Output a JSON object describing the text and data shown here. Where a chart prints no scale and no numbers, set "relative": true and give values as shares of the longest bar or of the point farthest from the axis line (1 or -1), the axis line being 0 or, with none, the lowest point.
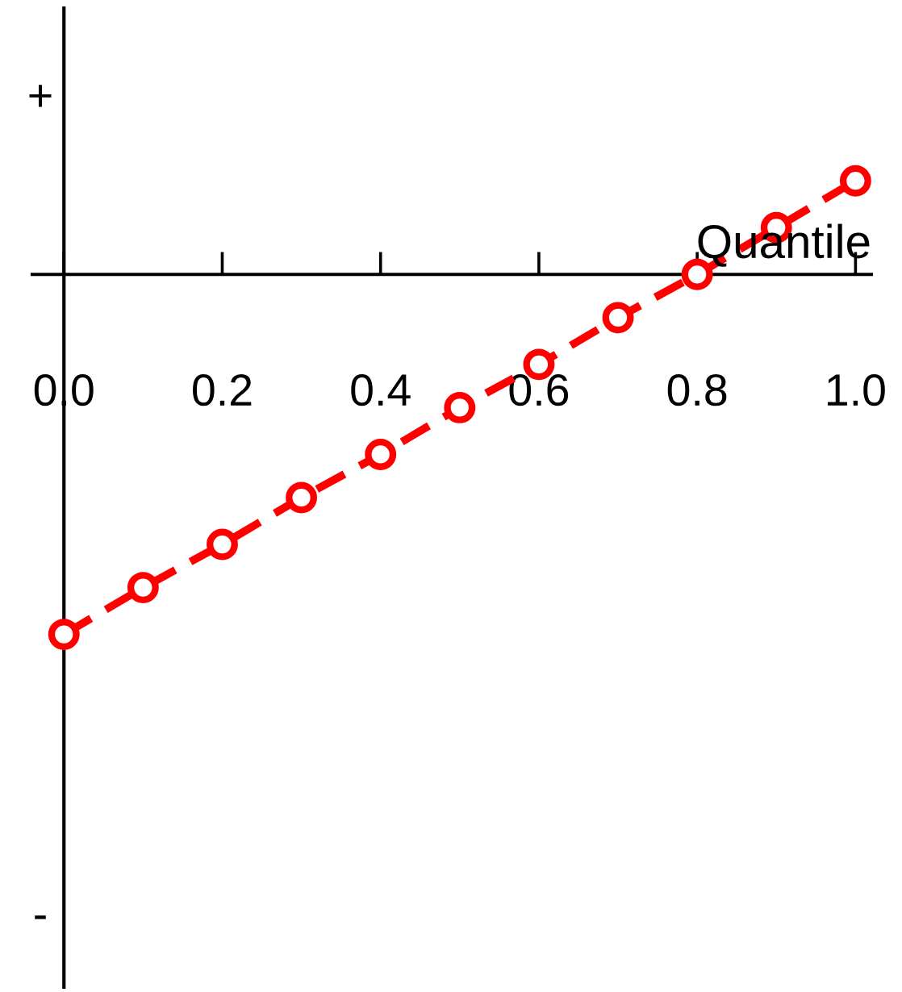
{
  "chart_data": {
    "type": "line",
    "relative": true,
    "xlabel": "Quantile",
    "x": [
      0,
      0.1,
      0.2,
      0.3,
      0.4,
      0.5,
      0.6,
      0.7,
      0.8,
      0.9,
      1.0
    ],
    "series": [
      {
        "color": "#ff0000",
        "values": [
          -1,
          -0.87,
          -0.75,
          -0.62,
          -0.5,
          -0.37,
          -0.25,
          -0.12,
          0,
          0.13,
          0.26
        ]
      }
    ],
    "xlim": [
      -0.04,
      1.02
    ],
    "xticks": [
      {
        "value": 0,
        "label": "0.0"
      },
      0.2,
      0.4,
      0.6,
      0.8,
      {
        "value": 1,
        "label": "1.0"
      }
    ],
    "annotations": [
      "+",
      "-"
    ],
    "marker": "circle",
    "line_style": "dashed",
    "legend": false
  }
}
